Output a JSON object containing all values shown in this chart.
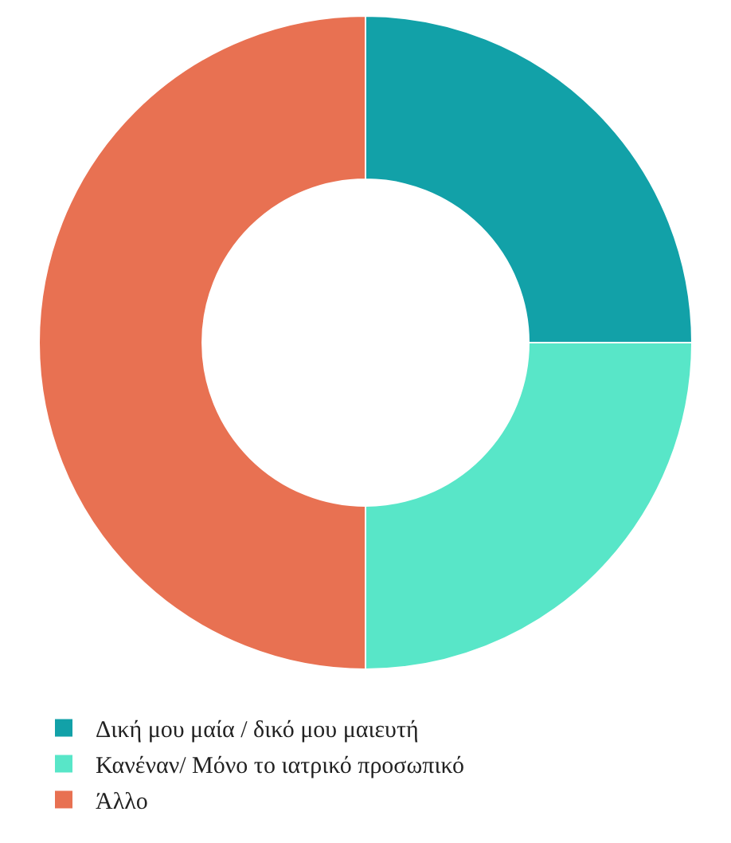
{
  "chart_data": {
    "type": "donut",
    "categories": [
      "Δική μου μαία / δικό μου μαιευτή",
      "Κανέναν/ Μόνο το ιατρικό προσωπικό",
      "Άλλο"
    ],
    "values": [
      25,
      25,
      50
    ],
    "colors": [
      "#12a1a8",
      "#58e6c8",
      "#e87152"
    ],
    "legend": "bottom"
  }
}
